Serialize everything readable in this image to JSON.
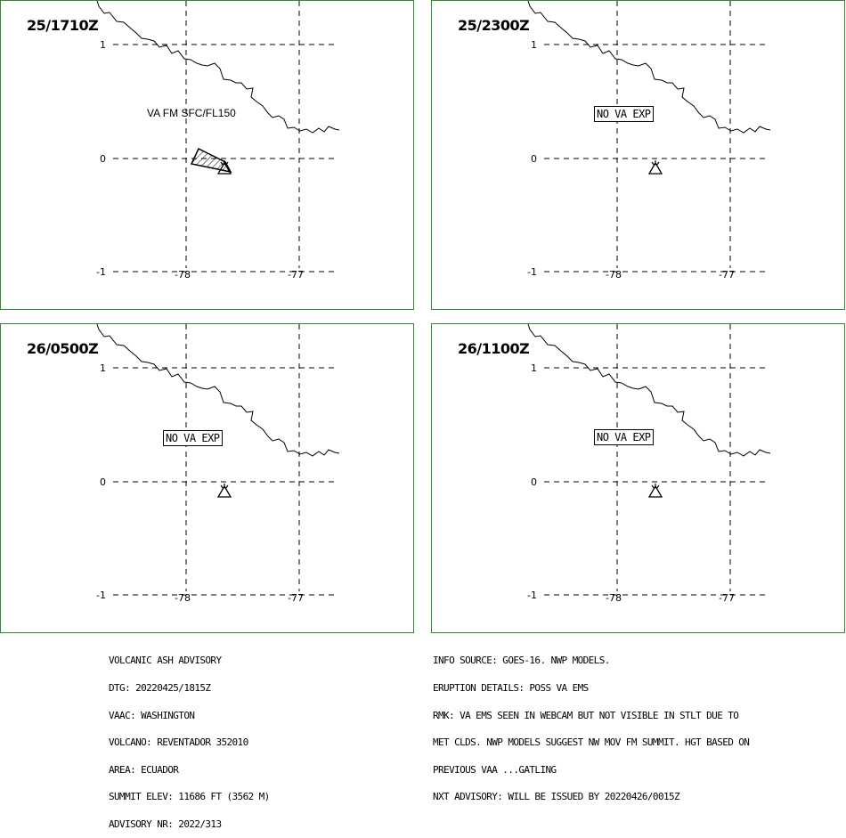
{
  "panels": [
    {
      "time": "25/1710Z",
      "label": "VA FM SFC/FL150",
      "label_boxed": false,
      "has_ash": true
    },
    {
      "time": "25/2300Z",
      "label": "NO VA EXP",
      "label_boxed": true,
      "has_ash": false
    },
    {
      "time": "26/0500Z",
      "label": "NO VA EXP",
      "label_boxed": true,
      "has_ash": false
    },
    {
      "time": "26/1100Z",
      "label": "NO VA EXP",
      "label_boxed": true,
      "has_ash": false
    }
  ],
  "axes": {
    "lat_labels": [
      "1",
      "0",
      "-1"
    ],
    "lon_labels": [
      "-78",
      "-77"
    ]
  },
  "advisory": {
    "lines": [
      "VOLCANIC ASH ADVISORY",
      "DTG: 20220425/1815Z",
      "VAAC: WASHINGTON",
      "VOLCANO: REVENTADOR 352010",
      "AREA: ECUADOR",
      "SUMMIT ELEV: 11686 FT (3562 M)",
      "ADVISORY NR: 2022/313"
    ]
  },
  "remarks": {
    "lines": [
      "INFO SOURCE: GOES-16. NWP MODELS.",
      "ERUPTION DETAILS: POSS VA EMS",
      "RMK: VA EMS SEEN IN WEBCAM BUT NOT VISIBLE IN STLT DUE TO",
      "MET CLDS. NWP MODELS SUGGEST NW MOV FM SUMMIT. HGT BASED ON",
      "PREVIOUS VAA ...GATLING",
      "NXT ADVISORY: WILL BE ISSUED BY 20220426/0015Z"
    ]
  },
  "colors": {
    "panel_border": "#2e8b2e",
    "ink": "#000000"
  }
}
